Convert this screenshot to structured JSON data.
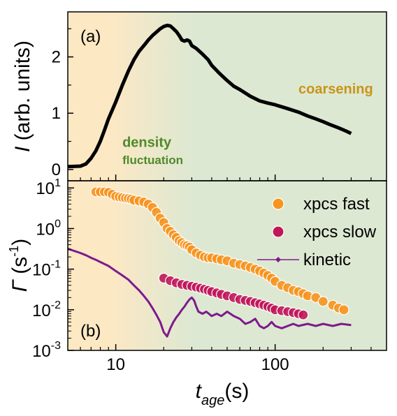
{
  "chart_data": [
    {
      "panel": "(a)",
      "type": "line",
      "xscale": "log",
      "xlim": [
        5,
        500
      ],
      "ylim": [
        -0.2,
        2.8
      ],
      "yticks": [
        "0",
        "1",
        "2"
      ],
      "ylabel_symbol": "I",
      "ylabel_rest": " (arb. units)",
      "background": {
        "left_color": "#fde8c4",
        "right_color": "#dde8d2",
        "transition_x": [
          9,
          30
        ]
      },
      "annotations": [
        {
          "text": "density",
          "x": 11,
          "y": 0.4,
          "color": "#4f8a2a",
          "size": 20
        },
        {
          "text": "fluctuation",
          "x": 11,
          "y": 0.1,
          "color": "#4f8a2a",
          "size": 17
        },
        {
          "text": "coarsening",
          "x": 140,
          "y": 1.35,
          "color": "#c8941a",
          "size": 20
        }
      ],
      "series": [
        {
          "color": "#000000",
          "x": [
            5,
            6,
            6.5,
            7,
            7.5,
            8,
            8.5,
            9,
            10,
            11,
            12,
            13,
            14,
            15,
            16,
            17,
            18,
            19,
            20,
            21,
            22,
            23,
            24,
            25,
            26,
            27,
            28,
            29,
            30,
            32,
            35,
            38,
            40,
            45,
            50,
            55,
            60,
            70,
            80,
            90,
            100,
            120,
            140,
            160,
            180,
            200,
            220,
            250,
            280,
            300
          ],
          "y": [
            0.05,
            0.06,
            0.1,
            0.2,
            0.33,
            0.5,
            0.7,
            0.9,
            1.2,
            1.5,
            1.75,
            1.95,
            2.1,
            2.2,
            2.3,
            2.38,
            2.44,
            2.5,
            2.54,
            2.56,
            2.55,
            2.5,
            2.45,
            2.38,
            2.3,
            2.28,
            2.3,
            2.28,
            2.2,
            2.15,
            2.05,
            1.95,
            1.85,
            1.7,
            1.58,
            1.48,
            1.42,
            1.3,
            1.22,
            1.18,
            1.15,
            1.08,
            1.02,
            0.95,
            0.9,
            0.85,
            0.8,
            0.74,
            0.68,
            0.64
          ]
        }
      ]
    },
    {
      "panel": "(b)",
      "type": "scatter",
      "xscale": "log",
      "yscale": "log",
      "xlim": [
        5,
        500
      ],
      "ylim": [
        0.001,
        15
      ],
      "xticks": [
        "10",
        "100"
      ],
      "xtick_values": [
        10,
        100
      ],
      "yticks": [
        {
          "base": "10",
          "exp": "1"
        },
        {
          "base": "10",
          "exp": "0"
        },
        {
          "base": "10",
          "exp": "-1"
        },
        {
          "base": "10",
          "exp": "-2"
        },
        {
          "base": "10",
          "exp": "-3"
        }
      ],
      "ytick_values": [
        10,
        1,
        0.1,
        0.01,
        0.001
      ],
      "ylabel_symbol": "Γ",
      "ylabel_rest": " (s",
      "ylabel_exp": "-1",
      "ylabel_close": ")",
      "xlabel_symbol": "t",
      "xlabel_sub": "age",
      "xlabel_rest": "(s)",
      "legend_position": "top-right",
      "series": [
        {
          "name": "xpcs fast",
          "color": "#f7941d",
          "marker": "circle",
          "x": [
            7.5,
            8,
            8.5,
            9,
            9.5,
            10,
            10.5,
            11,
            11.5,
            12,
            12.5,
            13,
            14,
            15,
            16,
            17,
            18,
            19,
            20,
            21,
            22,
            23,
            24,
            25,
            26,
            27,
            28,
            29,
            30,
            32,
            34,
            36,
            38,
            40,
            43,
            46,
            50,
            55,
            60,
            65,
            70,
            75,
            80,
            85,
            90,
            95,
            100,
            110,
            120,
            130,
            140,
            150,
            160,
            180,
            200,
            230,
            250,
            270
          ],
          "y": [
            8,
            8,
            8,
            7.8,
            7,
            6.2,
            6,
            5.8,
            5.6,
            5.5,
            5.3,
            5,
            4.8,
            4.5,
            4,
            3.3,
            2.5,
            1.8,
            1.4,
            1,
            0.85,
            0.7,
            0.6,
            0.5,
            0.45,
            0.4,
            0.38,
            0.35,
            0.3,
            0.25,
            0.22,
            0.2,
            0.19,
            0.19,
            0.18,
            0.17,
            0.16,
            0.14,
            0.13,
            0.12,
            0.11,
            0.1,
            0.09,
            0.08,
            0.07,
            0.06,
            0.05,
            0.04,
            0.035,
            0.03,
            0.028,
            0.025,
            0.022,
            0.02,
            0.016,
            0.013,
            0.011,
            0.01
          ]
        },
        {
          "name": "xpcs slow",
          "color": "#c0175a",
          "marker": "circle",
          "x": [
            20,
            22,
            24,
            26,
            28,
            30,
            32,
            34,
            36,
            38,
            40,
            43,
            46,
            50,
            55,
            60,
            65,
            70,
            75,
            80,
            85,
            90,
            95,
            100,
            110,
            120,
            130,
            140,
            150
          ],
          "y": [
            0.06,
            0.052,
            0.046,
            0.042,
            0.04,
            0.038,
            0.036,
            0.034,
            0.032,
            0.03,
            0.028,
            0.026,
            0.024,
            0.022,
            0.02,
            0.018,
            0.017,
            0.016,
            0.015,
            0.014,
            0.013,
            0.012,
            0.011,
            0.01,
            0.0095,
            0.009,
            0.0085,
            0.008,
            0.0075
          ]
        },
        {
          "name": "kinetic",
          "color": "#7d1a8c",
          "marker": "line-diamond",
          "x": [
            5,
            5.5,
            6,
            6.5,
            7,
            7.5,
            8,
            9,
            10,
            11,
            12,
            13,
            14,
            15,
            16,
            17,
            18,
            19,
            20,
            21,
            22,
            23,
            24,
            25,
            26,
            27,
            28,
            29,
            30,
            31,
            32,
            33,
            35,
            37,
            40,
            43,
            46,
            50,
            55,
            60,
            65,
            70,
            75,
            80,
            85,
            90,
            95,
            100,
            110,
            120,
            130,
            140,
            160,
            180,
            200,
            230,
            260,
            300
          ],
          "y": [
            0.32,
            0.28,
            0.25,
            0.22,
            0.19,
            0.17,
            0.15,
            0.12,
            0.09,
            0.07,
            0.055,
            0.04,
            0.03,
            0.022,
            0.016,
            0.011,
            0.0075,
            0.005,
            0.0028,
            0.0022,
            0.0035,
            0.005,
            0.0065,
            0.008,
            0.01,
            0.012,
            0.015,
            0.018,
            0.02,
            0.017,
            0.012,
            0.009,
            0.008,
            0.009,
            0.007,
            0.008,
            0.007,
            0.009,
            0.007,
            0.006,
            0.0045,
            0.005,
            0.006,
            0.004,
            0.0035,
            0.004,
            0.005,
            0.004,
            0.0035,
            0.004,
            0.0045,
            0.004,
            0.0045,
            0.004,
            0.0045,
            0.004,
            0.0045,
            0.0042
          ]
        }
      ]
    }
  ]
}
